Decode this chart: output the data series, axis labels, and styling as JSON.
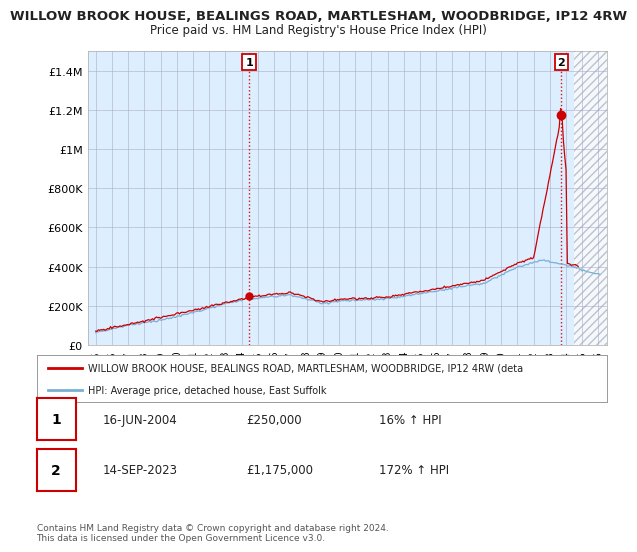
{
  "title_line1": "WILLOW BROOK HOUSE, BEALINGS ROAD, MARTLESHAM, WOODBRIDGE, IP12 4RW",
  "title_line2": "Price paid vs. HM Land Registry's House Price Index (HPI)",
  "ylim": [
    0,
    1500000
  ],
  "yticks": [
    0,
    200000,
    400000,
    600000,
    800000,
    1000000,
    1200000,
    1400000
  ],
  "ytick_labels": [
    "£0",
    "£200K",
    "£400K",
    "£600K",
    "£800K",
    "£1M",
    "£1.2M",
    "£1.4M"
  ],
  "xlim_start": 1994.5,
  "xlim_end": 2026.5,
  "xticks": [
    1995,
    1996,
    1997,
    1998,
    1999,
    2000,
    2001,
    2002,
    2003,
    2004,
    2005,
    2006,
    2007,
    2008,
    2009,
    2010,
    2011,
    2012,
    2013,
    2014,
    2015,
    2016,
    2017,
    2018,
    2019,
    2020,
    2021,
    2022,
    2023,
    2024,
    2025,
    2026
  ],
  "sale1_x": 2004.46,
  "sale1_y": 250000,
  "sale1_label": "1",
  "sale2_x": 2023.71,
  "sale2_y": 1175000,
  "sale2_label": "2",
  "hpi_color": "#7aafd4",
  "price_color": "#cc0000",
  "dashed_color": "#cc0000",
  "bg_fill_color": "#ddeeff",
  "future_hatch_start": 2024.5,
  "legend_text1": "WILLOW BROOK HOUSE, BEALINGS ROAD, MARTLESHAM, WOODBRIDGE, IP12 4RW (deta",
  "legend_text2": "HPI: Average price, detached house, East Suffolk",
  "annotation1_date": "16-JUN-2004",
  "annotation1_price": "£250,000",
  "annotation1_hpi": "16% ↑ HPI",
  "annotation2_date": "14-SEP-2023",
  "annotation2_price": "£1,175,000",
  "annotation2_hpi": "172% ↑ HPI",
  "footer": "Contains HM Land Registry data © Crown copyright and database right 2024.\nThis data is licensed under the Open Government Licence v3.0.",
  "bg_color": "#ffffff",
  "grid_color": "#aaaacc",
  "title_fontsize": 9.5,
  "subtitle_fontsize": 8.5
}
